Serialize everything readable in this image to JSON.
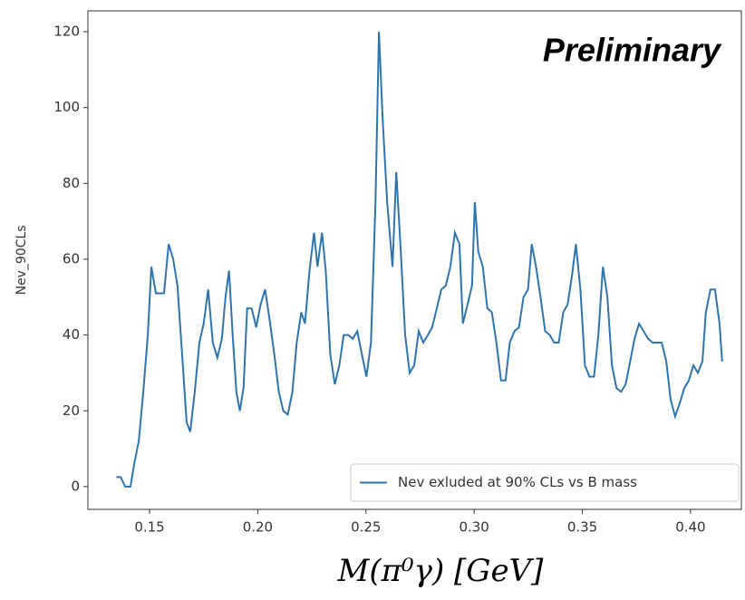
{
  "chart_data": {
    "type": "line",
    "annotation": "Preliminary",
    "xlabel": "M(π⁰γ) [GeV]",
    "ylabel": "Nev_90CLs",
    "legend": "lower right",
    "series": [
      {
        "name": "Nev exluded at 90% CLs vs B mass",
        "color": "#2e75b0",
        "x": [
          0.1346,
          0.1366,
          0.1387,
          0.1412,
          0.1429,
          0.145,
          0.1471,
          0.1492,
          0.1508,
          0.1529,
          0.1567,
          0.1588,
          0.1609,
          0.1629,
          0.165,
          0.1671,
          0.1688,
          0.1709,
          0.173,
          0.175,
          0.1771,
          0.1792,
          0.1813,
          0.1834,
          0.1851,
          0.1867,
          0.1884,
          0.1901,
          0.1917,
          0.1934,
          0.1951,
          0.1972,
          0.1993,
          0.2013,
          0.2034,
          0.2055,
          0.2076,
          0.2097,
          0.2118,
          0.2139,
          0.216,
          0.218,
          0.2201,
          0.2218,
          0.2239,
          0.226,
          0.2276,
          0.2297,
          0.2314,
          0.2335,
          0.2356,
          0.2377,
          0.2397,
          0.2418,
          0.2439,
          0.246,
          0.2481,
          0.2502,
          0.2523,
          0.2544,
          0.256,
          0.2577,
          0.2598,
          0.2623,
          0.264,
          0.266,
          0.2681,
          0.2702,
          0.2723,
          0.2744,
          0.2765,
          0.2786,
          0.2806,
          0.2827,
          0.2848,
          0.2869,
          0.289,
          0.2911,
          0.2932,
          0.2948,
          0.2969,
          0.299,
          0.3003,
          0.3019,
          0.304,
          0.3061,
          0.3082,
          0.3103,
          0.3124,
          0.3145,
          0.3165,
          0.3186,
          0.3207,
          0.3228,
          0.3249,
          0.3266,
          0.3286,
          0.3307,
          0.3328,
          0.3349,
          0.337,
          0.3391,
          0.3412,
          0.3432,
          0.3453,
          0.347,
          0.3491,
          0.3512,
          0.3533,
          0.3554,
          0.3574,
          0.3595,
          0.3616,
          0.3637,
          0.3658,
          0.3679,
          0.37,
          0.3721,
          0.3741,
          0.3762,
          0.3783,
          0.3804,
          0.3825,
          0.3846,
          0.3867,
          0.3888,
          0.3908,
          0.3929,
          0.395,
          0.3971,
          0.3992,
          0.4013,
          0.4034,
          0.4055,
          0.4071,
          0.4092,
          0.4113,
          0.4134,
          0.4146
        ],
        "values": [
          2.5,
          2.5,
          0,
          0,
          6,
          12,
          25,
          40,
          58,
          51,
          51,
          64,
          60,
          53,
          35,
          17,
          14.5,
          25,
          38,
          43,
          52,
          38,
          34,
          39,
          50,
          57,
          40,
          25,
          20,
          26,
          47,
          47,
          42,
          48,
          52,
          44,
          35,
          25,
          20,
          19,
          25,
          38,
          46,
          43,
          57,
          67,
          58,
          67,
          57,
          35,
          27,
          32,
          40,
          40,
          39,
          41,
          35,
          29,
          38,
          75,
          120,
          97,
          75,
          58,
          83,
          63,
          40,
          30,
          32,
          41,
          38,
          40,
          42,
          47,
          52,
          53,
          58,
          67,
          64,
          43,
          48,
          53,
          75,
          62,
          58,
          47,
          46,
          38,
          28,
          28,
          38,
          41,
          42,
          50,
          52,
          64,
          58,
          50,
          41,
          40,
          38,
          38,
          46,
          48,
          56,
          64,
          52,
          32,
          29,
          29,
          40,
          58,
          50,
          32,
          26,
          25,
          27,
          33,
          39,
          43,
          41,
          39,
          38,
          38,
          38,
          33,
          23,
          18.5,
          22,
          26,
          28,
          32,
          30,
          33,
          46,
          52,
          52,
          43,
          33
        ]
      }
    ],
    "xlim": [
      0.1215,
      0.4235
    ],
    "xticks": [
      {
        "value": 0.15,
        "label": "0.15"
      },
      {
        "value": 0.2,
        "label": "0.20"
      },
      {
        "value": 0.25,
        "label": "0.25"
      },
      {
        "value": 0.3,
        "label": "0.30"
      },
      {
        "value": 0.35,
        "label": "0.35"
      },
      {
        "value": 0.4,
        "label": "0.40"
      }
    ],
    "ylim": [
      -6,
      125.5
    ],
    "yticks": [
      0,
      20,
      40,
      60,
      80,
      100,
      120
    ],
    "grid": false
  }
}
